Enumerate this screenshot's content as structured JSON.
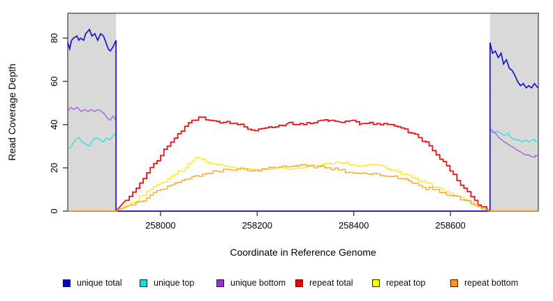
{
  "chart_data": {
    "type": "line",
    "title": "",
    "xlabel": "Coordinate in Reference Genome",
    "ylabel": "Read Coverage Depth",
    "xlim": [
      257808,
      258782
    ],
    "ylim": [
      0,
      91.5
    ],
    "x_ticks": [
      258000,
      258200,
      258400,
      258600
    ],
    "y_ticks": [
      0,
      20,
      40,
      60,
      80
    ],
    "grid": false,
    "legend_position": "bottom",
    "shade_color": "#d9d9d9",
    "box_color": "#3c3c3c",
    "shaded_flank_regions": [
      [
        257808,
        257908
      ],
      [
        258682,
        258782
      ]
    ],
    "repeat_region": [
      257908,
      258682
    ],
    "series": [
      {
        "name": "unique top",
        "color": "#2edede",
        "points": [
          [
            257808,
            30
          ],
          [
            257812,
            29
          ],
          [
            257818,
            31
          ],
          [
            257824,
            33
          ],
          [
            257831,
            34
          ],
          [
            257838,
            32
          ],
          [
            257845,
            31
          ],
          [
            257853,
            30
          ],
          [
            257860,
            33
          ],
          [
            257867,
            34
          ],
          [
            257875,
            33
          ],
          [
            257882,
            32
          ],
          [
            257889,
            34
          ],
          [
            257896,
            33
          ],
          [
            257902,
            35
          ],
          [
            257908,
            36
          ],
          [
            257908,
            0
          ],
          [
            258682,
            0
          ],
          [
            258682,
            37
          ],
          [
            258690,
            36
          ],
          [
            258697,
            37
          ],
          [
            258704,
            36
          ],
          [
            258712,
            35
          ],
          [
            258719,
            36
          ],
          [
            258726,
            34
          ],
          [
            258733,
            33
          ],
          [
            258741,
            33
          ],
          [
            258748,
            32
          ],
          [
            258755,
            33
          ],
          [
            258762,
            32
          ],
          [
            258770,
            33
          ],
          [
            258781,
            32
          ]
        ]
      },
      {
        "name": "unique bottom",
        "color": "#a458de",
        "points": [
          [
            257808,
            46
          ],
          [
            257814,
            48
          ],
          [
            257821,
            47
          ],
          [
            257828,
            48
          ],
          [
            257836,
            46
          ],
          [
            257843,
            47
          ],
          [
            257850,
            46
          ],
          [
            257857,
            47
          ],
          [
            257864,
            46
          ],
          [
            257871,
            47
          ],
          [
            257878,
            46
          ],
          [
            257884,
            45
          ],
          [
            257890,
            43
          ],
          [
            257896,
            42
          ],
          [
            257902,
            44
          ],
          [
            257908,
            42
          ],
          [
            257908,
            0
          ],
          [
            258682,
            0
          ],
          [
            258682,
            38
          ],
          [
            258688,
            37
          ],
          [
            258694,
            36
          ],
          [
            258700,
            34
          ],
          [
            258706,
            33
          ],
          [
            258712,
            32
          ],
          [
            258719,
            31
          ],
          [
            258726,
            30
          ],
          [
            258733,
            29
          ],
          [
            258740,
            28
          ],
          [
            258748,
            27
          ],
          [
            258755,
            26
          ],
          [
            258762,
            26
          ],
          [
            258770,
            25
          ],
          [
            258781,
            25
          ]
        ]
      },
      {
        "name": "unique total",
        "color": "#1414d2",
        "points": [
          [
            257808,
            78
          ],
          [
            257812,
            75
          ],
          [
            257816,
            79
          ],
          [
            257820,
            80
          ],
          [
            257827,
            81
          ],
          [
            257831,
            79
          ],
          [
            257834,
            80
          ],
          [
            257841,
            79
          ],
          [
            257845,
            82
          ],
          [
            257853,
            84
          ],
          [
            257858,
            81
          ],
          [
            257864,
            82
          ],
          [
            257870,
            79
          ],
          [
            257876,
            82
          ],
          [
            257882,
            81
          ],
          [
            257887,
            78
          ],
          [
            257892,
            75
          ],
          [
            257896,
            74
          ],
          [
            257902,
            76
          ],
          [
            257908,
            79
          ],
          [
            257908,
            0
          ],
          [
            258682,
            0
          ],
          [
            258682,
            78
          ],
          [
            258687,
            73
          ],
          [
            258693,
            74
          ],
          [
            258699,
            71
          ],
          [
            258705,
            73
          ],
          [
            258710,
            68
          ],
          [
            258716,
            70
          ],
          [
            258722,
            66
          ],
          [
            258728,
            65
          ],
          [
            258733,
            63
          ],
          [
            258739,
            60
          ],
          [
            258745,
            58
          ],
          [
            258751,
            59
          ],
          [
            258757,
            57
          ],
          [
            258762,
            58
          ],
          [
            258768,
            57
          ],
          [
            258774,
            59
          ],
          [
            258781,
            57
          ]
        ]
      },
      {
        "name": "repeat total",
        "color": "#ec1010",
        "points": [
          [
            257808,
            0
          ],
          [
            257908,
            0
          ],
          [
            257928,
            5
          ],
          [
            257957,
            13
          ],
          [
            257986,
            22
          ],
          [
            258014,
            30
          ],
          [
            258043,
            37
          ],
          [
            258065,
            42
          ],
          [
            258079,
            43.5
          ],
          [
            258101,
            42
          ],
          [
            258116,
            41.5
          ],
          [
            258130,
            41
          ],
          [
            258144,
            40.5
          ],
          [
            258159,
            40
          ],
          [
            258173,
            39
          ],
          [
            258188,
            37.5
          ],
          [
            258203,
            38
          ],
          [
            258217,
            38.5
          ],
          [
            258238,
            39
          ],
          [
            258260,
            40
          ],
          [
            258267,
            41
          ],
          [
            258282,
            40
          ],
          [
            258296,
            40
          ],
          [
            258310,
            40.5
          ],
          [
            258325,
            41.5
          ],
          [
            258332,
            42
          ],
          [
            258347,
            41.5
          ],
          [
            258354,
            42
          ],
          [
            258368,
            41.5
          ],
          [
            258375,
            41
          ],
          [
            258390,
            41.5
          ],
          [
            258397,
            42
          ],
          [
            258412,
            40
          ],
          [
            258419,
            40.5
          ],
          [
            258433,
            41
          ],
          [
            258448,
            40.5
          ],
          [
            258462,
            40.5
          ],
          [
            258477,
            40
          ],
          [
            258491,
            39
          ],
          [
            258505,
            38
          ],
          [
            258520,
            36
          ],
          [
            258534,
            34
          ],
          [
            258549,
            32
          ],
          [
            258563,
            28
          ],
          [
            258578,
            24
          ],
          [
            258592,
            21
          ],
          [
            258606,
            17
          ],
          [
            258621,
            12
          ],
          [
            258635,
            9
          ],
          [
            258650,
            5
          ],
          [
            258664,
            2
          ],
          [
            258675,
            1
          ],
          [
            258682,
            0
          ],
          [
            258782,
            0
          ]
        ]
      },
      {
        "name": "repeat top",
        "color": "#ffe614",
        "points": [
          [
            257808,
            0
          ],
          [
            257908,
            0
          ],
          [
            257942,
            4
          ],
          [
            257971,
            9
          ],
          [
            258000,
            13
          ],
          [
            258029,
            17
          ],
          [
            258051,
            20
          ],
          [
            258065,
            23
          ],
          [
            258077,
            25
          ],
          [
            258087,
            24
          ],
          [
            258101,
            22
          ],
          [
            258116,
            21.5
          ],
          [
            258130,
            21
          ],
          [
            258152,
            20
          ],
          [
            258173,
            19.5
          ],
          [
            258195,
            19
          ],
          [
            258217,
            19.5
          ],
          [
            258238,
            20
          ],
          [
            258260,
            19.5
          ],
          [
            258282,
            20
          ],
          [
            258303,
            20.5
          ],
          [
            258325,
            21
          ],
          [
            258347,
            22
          ],
          [
            258361,
            22.5
          ],
          [
            258375,
            22
          ],
          [
            258397,
            21.5
          ],
          [
            258419,
            21
          ],
          [
            258440,
            21.5
          ],
          [
            258462,
            20.5
          ],
          [
            258484,
            19
          ],
          [
            258505,
            17
          ],
          [
            258527,
            15
          ],
          [
            258549,
            13
          ],
          [
            258570,
            11
          ],
          [
            258592,
            9
          ],
          [
            258614,
            7
          ],
          [
            258635,
            5
          ],
          [
            258657,
            2
          ],
          [
            258682,
            0
          ],
          [
            258782,
            0
          ]
        ]
      },
      {
        "name": "repeat bottom",
        "color": "#ff9e1e",
        "points": [
          [
            257808,
            0
          ],
          [
            257908,
            0
          ],
          [
            257942,
            3
          ],
          [
            257971,
            6
          ],
          [
            258000,
            10
          ],
          [
            258029,
            13
          ],
          [
            258058,
            15
          ],
          [
            258087,
            17
          ],
          [
            258116,
            18.5
          ],
          [
            258144,
            19
          ],
          [
            258173,
            19.5
          ],
          [
            258195,
            19
          ],
          [
            258217,
            19.5
          ],
          [
            258238,
            20
          ],
          [
            258260,
            20.5
          ],
          [
            258282,
            21
          ],
          [
            258303,
            21
          ],
          [
            258325,
            20.5
          ],
          [
            258347,
            20
          ],
          [
            258368,
            19
          ],
          [
            258390,
            18
          ],
          [
            258412,
            17.5
          ],
          [
            258433,
            17
          ],
          [
            258455,
            16.5
          ],
          [
            258477,
            16
          ],
          [
            258498,
            15
          ],
          [
            258520,
            13
          ],
          [
            258542,
            11
          ],
          [
            258563,
            10
          ],
          [
            258585,
            8.5
          ],
          [
            258606,
            7
          ],
          [
            258628,
            5
          ],
          [
            258650,
            3
          ],
          [
            258671,
            1
          ],
          [
            258682,
            0
          ],
          [
            258782,
            0
          ]
        ]
      }
    ]
  },
  "legend": {
    "items": [
      {
        "label": "unique total",
        "color": "#0000cc"
      },
      {
        "label": "unique top",
        "color": "#00e5e5"
      },
      {
        "label": "unique bottom",
        "color": "#9b30d0"
      },
      {
        "label": "repeat total",
        "color": "#ee0000"
      },
      {
        "label": "repeat top",
        "color": "#ffff00"
      },
      {
        "label": "repeat bottom",
        "color": "#ff9912"
      }
    ]
  }
}
